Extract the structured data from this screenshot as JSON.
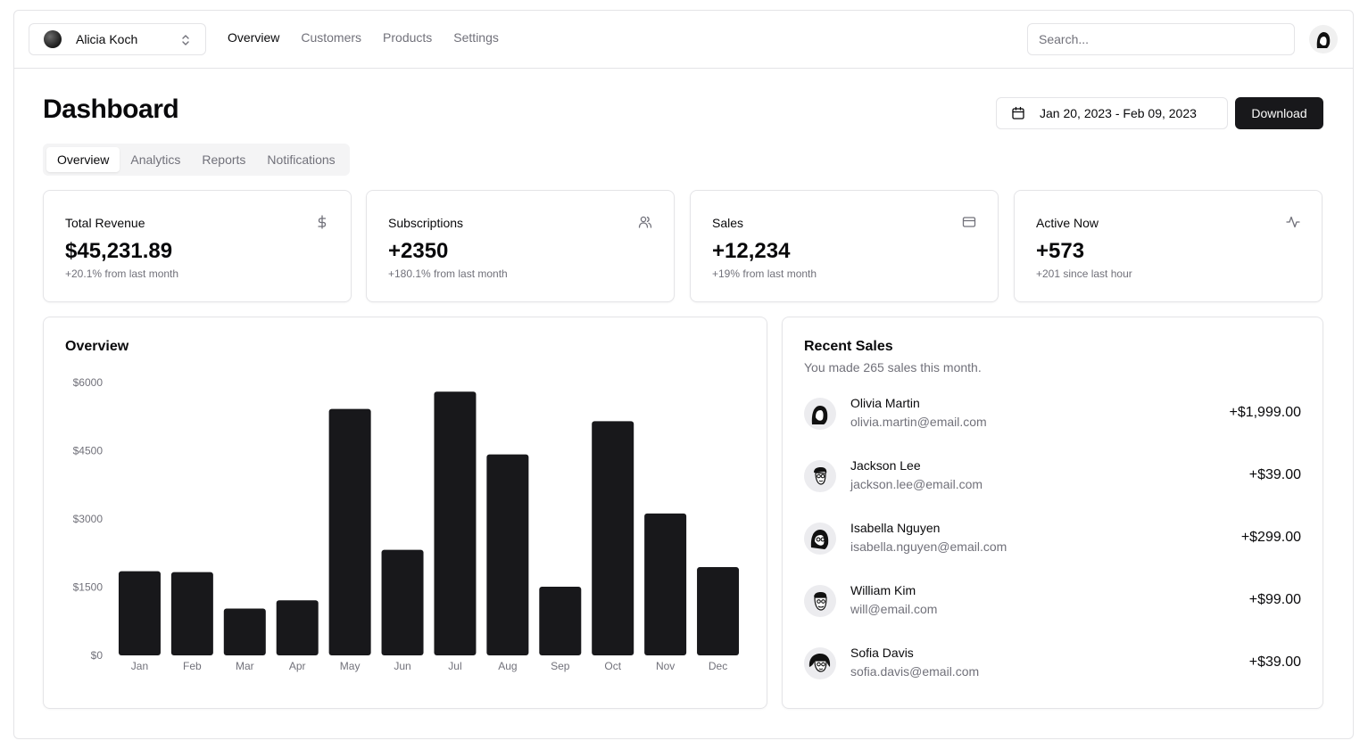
{
  "topnav": {
    "team": "Alicia Koch",
    "links": [
      "Overview",
      "Customers",
      "Products",
      "Settings"
    ],
    "search_placeholder": "Search..."
  },
  "header": {
    "title": "Dashboard",
    "date_range": "Jan 20, 2023 - Feb 09, 2023",
    "download_label": "Download"
  },
  "tabs": [
    "Overview",
    "Analytics",
    "Reports",
    "Notifications"
  ],
  "stats": [
    {
      "title": "Total Revenue",
      "value": "$45,231.89",
      "sub": "+20.1% from last month",
      "icon": "dollar-icon"
    },
    {
      "title": "Subscriptions",
      "value": "+2350",
      "sub": "+180.1% from last month",
      "icon": "users-icon"
    },
    {
      "title": "Sales",
      "value": "+12,234",
      "sub": "+19% from last month",
      "icon": "credit-card-icon"
    },
    {
      "title": "Active Now",
      "value": "+573",
      "sub": "+201 since last hour",
      "icon": "activity-icon"
    }
  ],
  "overview": {
    "title": "Overview"
  },
  "chart_data": {
    "type": "bar",
    "categories": [
      "Jan",
      "Feb",
      "Mar",
      "Apr",
      "May",
      "Jun",
      "Jul",
      "Aug",
      "Sep",
      "Oct",
      "Nov",
      "Dec"
    ],
    "values": [
      1850,
      1830,
      1030,
      1210,
      5420,
      2320,
      5800,
      4420,
      1510,
      5150,
      3120,
      1940
    ],
    "yticks": [
      "$0",
      "$1500",
      "$3000",
      "$4500",
      "$6000"
    ],
    "ylim": [
      0,
      6000
    ],
    "bar_color": "#18181b"
  },
  "recent_sales": {
    "title": "Recent Sales",
    "subtitle": "You made 265 sales this month.",
    "items": [
      {
        "name": "Olivia Martin",
        "email": "olivia.martin@email.com",
        "amount": "+$1,999.00"
      },
      {
        "name": "Jackson Lee",
        "email": "jackson.lee@email.com",
        "amount": "+$39.00"
      },
      {
        "name": "Isabella Nguyen",
        "email": "isabella.nguyen@email.com",
        "amount": "+$299.00"
      },
      {
        "name": "William Kim",
        "email": "will@email.com",
        "amount": "+$99.00"
      },
      {
        "name": "Sofia Davis",
        "email": "sofia.davis@email.com",
        "amount": "+$39.00"
      }
    ]
  }
}
